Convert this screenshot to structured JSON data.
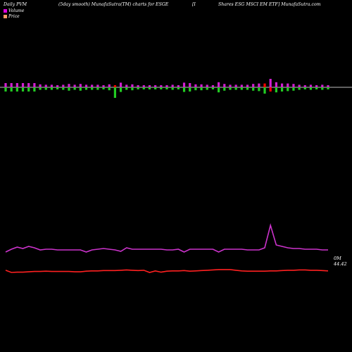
{
  "header": {
    "left": "Daily PVM",
    "center": "(5day smooth) MunafaSutra(TM) charts for ESGE",
    "bracket": "[I",
    "right": "Shares ESG MSCI EM ETF] MunafaSutra.com"
  },
  "legend": [
    {
      "label": "Volume",
      "color": "#e000e0"
    },
    {
      "label": "Price",
      "color": "#ff9966"
    }
  ],
  "colors": {
    "volume_up": "#d020d0",
    "volume_down": "#22cc22",
    "volume_big_down": "#ff0000",
    "volume_line": "#cc33cc",
    "price_line": "#ff2020",
    "baseline": "#ffffff"
  },
  "chart_data": {
    "type": "bar",
    "n": 57,
    "volume_bars": [
      [
        1,
        1
      ],
      [
        1,
        1
      ],
      [
        1,
        1
      ],
      [
        1,
        1
      ],
      [
        1,
        1
      ],
      [
        1,
        1
      ],
      [
        0.7,
        0.6
      ],
      [
        0.6,
        0.6
      ],
      [
        0.6,
        0.6
      ],
      [
        0.5,
        0.5
      ],
      [
        0.6,
        0.6
      ],
      [
        0.8,
        0.8
      ],
      [
        0.6,
        0.6
      ],
      [
        0.8,
        0.8
      ],
      [
        0.6,
        0.6
      ],
      [
        0.6,
        0.6
      ],
      [
        0.6,
        0.6
      ],
      [
        0.5,
        0.5
      ],
      [
        0.7,
        0.7
      ],
      [
        0.5,
        2.5
      ],
      [
        1.1,
        1.1
      ],
      [
        0.6,
        0.6
      ],
      [
        0.7,
        0.7
      ],
      [
        0.5,
        0.5
      ],
      [
        0.5,
        0.5
      ],
      [
        0.5,
        0.5
      ],
      [
        0.5,
        0.5
      ],
      [
        0.5,
        0.5
      ],
      [
        0.5,
        0.5
      ],
      [
        0.6,
        0.6
      ],
      [
        0.5,
        0.5
      ],
      [
        1.1,
        1.1
      ],
      [
        1.0,
        1.0
      ],
      [
        0.7,
        0.7
      ],
      [
        0.7,
        0.7
      ],
      [
        0.6,
        0.6
      ],
      [
        0.5,
        0.5
      ],
      [
        1.2,
        1.2
      ],
      [
        0.8,
        0.8
      ],
      [
        0.6,
        0.6
      ],
      [
        0.6,
        0.6
      ],
      [
        0.6,
        0.6
      ],
      [
        0.6,
        0.6
      ],
      [
        0.8,
        0.8
      ],
      [
        0.9,
        0.9
      ],
      [
        0.9,
        1.5
      ],
      [
        2.0,
        1.0
      ],
      [
        1.2,
        1.2
      ],
      [
        0.9,
        1.0
      ],
      [
        0.9,
        0.9
      ],
      [
        0.8,
        0.8
      ],
      [
        0.6,
        0.6
      ],
      [
        0.5,
        0.5
      ],
      [
        0.6,
        0.6
      ],
      [
        0.5,
        0.5
      ],
      [
        0.6,
        0.6
      ],
      [
        0.5,
        0.5
      ]
    ],
    "volume_colors": "uuuuuuuuuuuuuuuuuuuRuuuuuuuuuuuuuuuuuuuuuuuuuRuuuuuuuuuuu",
    "down_colors": "ggggggggggggggggggggggggggggggggggggggggggggggRgggggggggggg",
    "volume_line": [
      52,
      56,
      59,
      57,
      60,
      58,
      55,
      56,
      56,
      55,
      55,
      55,
      55,
      55,
      52,
      55,
      56,
      57,
      56,
      55,
      53,
      58,
      56,
      56,
      56,
      56,
      56,
      56,
      55,
      55,
      56,
      52,
      56,
      56,
      56,
      56,
      56,
      52,
      56,
      56,
      56,
      56,
      55,
      55,
      55,
      58,
      60,
      62,
      60,
      58,
      57,
      57,
      56,
      56,
      56,
      55,
      55
    ],
    "price_line": [
      47,
      40,
      41,
      41,
      42,
      43,
      43,
      44,
      43,
      43,
      43,
      43,
      42,
      42,
      44,
      45,
      45,
      46,
      46,
      46,
      47,
      48,
      47,
      46,
      47,
      40,
      45,
      41,
      44,
      45,
      45,
      46,
      44,
      45,
      46,
      47,
      48,
      49,
      49,
      49,
      47,
      45,
      44,
      44,
      44,
      44,
      45,
      45,
      46,
      47,
      47,
      48,
      48,
      47,
      47,
      46,
      45
    ],
    "end_labels": [
      "0M",
      "44.42"
    ]
  }
}
